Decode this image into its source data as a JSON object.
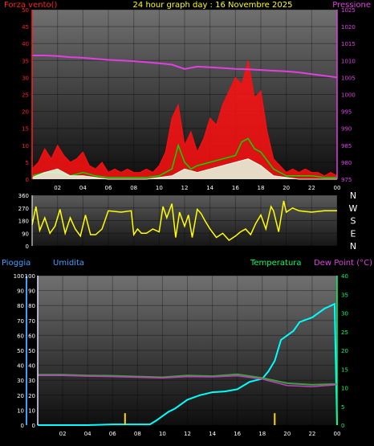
{
  "header": {
    "wind_label": "Forza vento()",
    "title": "24 hour graph day : 16 Novembre 2025",
    "pressure_label": "Pressione"
  },
  "labels": {
    "rain": "Pioggia",
    "humidity": "Umidita",
    "temperature": "Temperatura",
    "dewpoint": "Dew Point (°C)"
  },
  "colors": {
    "wind_avg": "#ff1010",
    "wind_gust": "#00dd00",
    "wind_min": "#e8ffe8",
    "pressure": "#e040e0",
    "direction": "#ffff00",
    "humidity": "#00ffff",
    "temperature": "#40a040",
    "dewpoint": "#c040c0",
    "rain": "#ffd700",
    "axis_left": "#ff2020",
    "axis_right": "#e040e0",
    "axis_rain": "#40a0ff",
    "axis_temp": "#00ff66",
    "axis_text": "#ffffff",
    "panel_bg_top": "#6e6e6e",
    "panel_bg_bottom": "#111111"
  },
  "chart_data": [
    {
      "type": "line",
      "name": "wind_pressure",
      "x_ticks": [
        "02",
        "04",
        "06",
        "08",
        "10",
        "12",
        "14",
        "16",
        "18",
        "20",
        "22",
        "00"
      ],
      "y_left_ticks": [
        "0",
        "5",
        "10",
        "15",
        "20",
        "25",
        "30",
        "35",
        "40",
        "45",
        "50"
      ],
      "ylim_left": [
        0,
        50
      ],
      "y_right_ticks": [
        "975",
        "980",
        "985",
        "990",
        "995",
        "1000",
        "1005",
        "1010",
        "1015",
        "1020",
        "1025"
      ],
      "ylim_right": [
        975,
        1025
      ],
      "xlim": [
        0,
        24
      ],
      "series": [
        {
          "key": "wind_avg",
          "axis": "left",
          "x": [
            0,
            0.5,
            1,
            1.5,
            2,
            2.5,
            3,
            3.5,
            4,
            4.5,
            5,
            5.5,
            6,
            6.5,
            7,
            7.5,
            8,
            8.5,
            9,
            9.5,
            10,
            10.5,
            11,
            11.5,
            12,
            12.5,
            13,
            13.5,
            14,
            14.5,
            15,
            15.5,
            16,
            16.5,
            17,
            17.5,
            18,
            18.5,
            19,
            19.5,
            20,
            20.5,
            21,
            21.5,
            22,
            22.5,
            23,
            23.5,
            24
          ],
          "values": [
            3,
            5,
            9,
            6,
            10,
            7,
            5,
            6,
            8,
            4,
            3,
            5,
            2,
            3,
            2,
            3,
            2,
            2,
            3,
            2,
            4,
            8,
            18,
            22,
            10,
            14,
            8,
            12,
            18,
            16,
            22,
            26,
            30,
            28,
            35,
            24,
            26,
            14,
            6,
            4,
            2,
            3,
            2,
            3,
            2,
            2,
            1,
            2,
            1
          ]
        },
        {
          "key": "wind_gust",
          "axis": "left",
          "x": [
            0,
            1,
            2,
            3,
            4,
            5,
            6,
            7,
            8,
            9,
            10,
            11,
            11.5,
            12,
            12.5,
            13,
            14,
            15,
            16,
            16.5,
            17,
            17.5,
            18,
            19,
            20,
            21,
            22,
            23,
            24
          ],
          "values": [
            1,
            2,
            2,
            1,
            2,
            1,
            0.5,
            0.5,
            0.5,
            0.5,
            1,
            3,
            10,
            5,
            3,
            4,
            5,
            6,
            7,
            11,
            12,
            9,
            8,
            3,
            1,
            1,
            1,
            0.5,
            0.5
          ]
        },
        {
          "key": "wind_min",
          "axis": "left",
          "x": [
            0,
            1,
            2,
            3,
            4,
            5,
            6,
            7,
            8,
            9,
            10,
            11,
            12,
            13,
            14,
            15,
            16,
            17,
            18,
            19,
            20,
            21,
            22,
            23,
            24
          ],
          "values": [
            0.5,
            2,
            3,
            1,
            1,
            0.5,
            0,
            0,
            0,
            0,
            0.5,
            1,
            3,
            2,
            3,
            4,
            5,
            6,
            4,
            1,
            0.5,
            0,
            0,
            0,
            0
          ]
        },
        {
          "key": "pressure",
          "axis": "right",
          "x": [
            0,
            1,
            2,
            3,
            4,
            5,
            6,
            7,
            8,
            9,
            10,
            11,
            12,
            13,
            14,
            15,
            16,
            17,
            18,
            19,
            20,
            21,
            22,
            23,
            24
          ],
          "values": [
            1011.5,
            1011.5,
            1011.3,
            1011,
            1010.8,
            1010.5,
            1010.2,
            1010,
            1009.8,
            1009.5,
            1009.2,
            1008.8,
            1007.5,
            1008.2,
            1008,
            1007.8,
            1007.5,
            1007.4,
            1007.2,
            1007,
            1006.8,
            1006.5,
            1006,
            1005.5,
            1005
          ]
        }
      ]
    },
    {
      "type": "line",
      "name": "wind_direction",
      "x_ticks": [],
      "y_left_ticks": [
        "0",
        "90",
        "180",
        "270",
        "360"
      ],
      "ylim_left": [
        0,
        360
      ],
      "compass": [
        "N",
        "W",
        "S",
        "E",
        "N"
      ],
      "xlim": [
        0,
        24
      ],
      "series": [
        {
          "key": "direction",
          "axis": "left",
          "x": [
            0,
            0.3,
            0.6,
            1,
            1.4,
            1.8,
            2.2,
            2.6,
            3,
            3.4,
            3.8,
            4.2,
            4.6,
            5,
            5.5,
            6,
            7,
            7.8,
            8,
            8.3,
            8.6,
            9,
            9.5,
            10,
            10.3,
            10.6,
            11,
            11.3,
            11.6,
            12,
            12.3,
            12.6,
            13,
            13.3,
            13.6,
            14,
            14.5,
            15,
            15.5,
            16,
            16.4,
            16.8,
            17.2,
            17.6,
            18,
            18.4,
            18.8,
            19,
            19.4,
            19.8,
            20,
            20.5,
            21,
            22,
            23,
            24
          ],
          "values": [
            150,
            280,
            110,
            200,
            90,
            140,
            260,
            90,
            200,
            120,
            70,
            220,
            80,
            80,
            120,
            250,
            240,
            250,
            80,
            120,
            90,
            90,
            120,
            100,
            280,
            200,
            300,
            60,
            240,
            140,
            220,
            60,
            260,
            230,
            180,
            120,
            60,
            90,
            40,
            70,
            100,
            120,
            80,
            160,
            220,
            120,
            280,
            250,
            100,
            320,
            240,
            270,
            250,
            240,
            250,
            250
          ]
        }
      ]
    },
    {
      "type": "line",
      "name": "humidity_temperature",
      "x_ticks": [
        "02",
        "04",
        "06",
        "08",
        "10",
        "12",
        "14",
        "16",
        "18",
        "20",
        "22",
        "00"
      ],
      "y_left_ticks": [
        "0",
        "10",
        "20",
        "30",
        "40",
        "50",
        "60",
        "70",
        "80",
        "90",
        "100"
      ],
      "ylim_left": [
        0,
        100
      ],
      "y_right_ticks": [
        "0",
        "5",
        "10",
        "15",
        "20",
        "25",
        "30",
        "35",
        "40"
      ],
      "ylim_right": [
        0,
        40
      ],
      "xlim": [
        0,
        24
      ],
      "series": [
        {
          "key": "humidity",
          "axis": "left",
          "x": [
            0,
            2,
            4,
            6,
            8,
            9,
            9.5,
            10,
            10.5,
            11,
            12,
            13,
            14,
            15,
            16,
            17,
            17.5,
            18,
            18.5,
            19,
            19.5,
            20,
            20.5,
            21,
            22,
            23,
            23.8,
            24
          ],
          "values": [
            0,
            0,
            0,
            0.5,
            0.5,
            0.5,
            3,
            6,
            9,
            11,
            17,
            20,
            22,
            22.5,
            24,
            29,
            30,
            31,
            36,
            43,
            57,
            60,
            63,
            69,
            72,
            78,
            81,
            0
          ]
        },
        {
          "key": "temperature",
          "axis": "right",
          "x": [
            0,
            2,
            4,
            6,
            8,
            10,
            12,
            14,
            16,
            18,
            20,
            22,
            24
          ],
          "values": [
            13.5,
            13.5,
            13.3,
            13.2,
            13,
            12.8,
            13.3,
            13.1,
            13.6,
            12.6,
            11.2,
            10.8,
            11
          ]
        },
        {
          "key": "dewpoint",
          "axis": "right",
          "x": [
            0,
            2,
            4,
            6,
            8,
            10,
            12,
            14,
            16,
            18,
            20,
            22,
            24
          ],
          "values": [
            13.3,
            13.3,
            13.1,
            13,
            12.8,
            12.6,
            13,
            12.9,
            13.2,
            12.3,
            10.6,
            10.3,
            10.8
          ]
        },
        {
          "key": "rain",
          "axis": "left",
          "type": "bar",
          "x": [
            7,
            19
          ],
          "values": [
            8,
            8
          ]
        }
      ]
    }
  ]
}
